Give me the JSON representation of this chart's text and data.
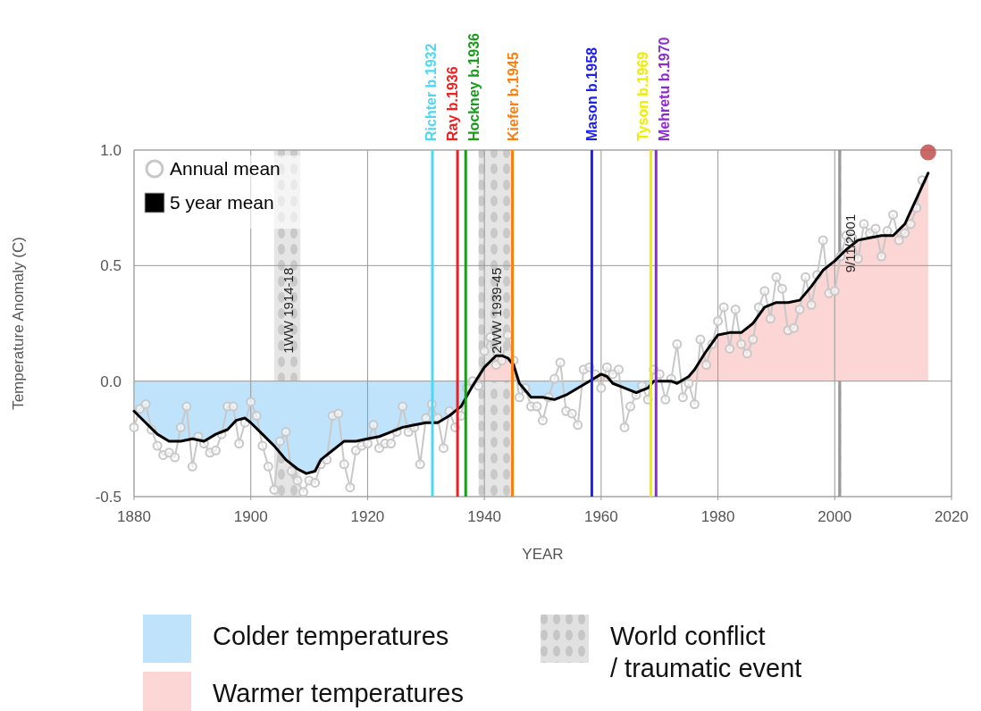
{
  "chart_data": {
    "type": "line",
    "xlabel": "YEAR",
    "ylabel": "Temperature Anomaly (C)",
    "xlim": [
      1880,
      2020
    ],
    "xticks": [
      1880,
      1900,
      1920,
      1940,
      1960,
      1980,
      2000,
      2020
    ],
    "ylim": [
      -0.5,
      1.0
    ],
    "yticks": [
      {
        "value": -0.5,
        "label": "-0.5"
      },
      {
        "value": 0,
        "label": "0.0"
      },
      {
        "value": 0.5,
        "label": "0.5"
      },
      {
        "value": 1.0,
        "label": "1.0"
      }
    ],
    "grid": true,
    "legend": "top left",
    "series": [
      {
        "type": "area",
        "color": "#bfe3fb",
        "x": [
          1880,
          1882,
          1884,
          1886,
          1888,
          1890,
          1892,
          1894,
          1896,
          1897.5,
          1899,
          1900,
          1902,
          1904,
          1906,
          1908,
          1909.5,
          1911,
          1912,
          1914,
          1916,
          1918,
          1920,
          1922,
          1924,
          1926,
          1928,
          1930,
          1932,
          1934,
          1936,
          1938,
          1938.3,
          1945.9,
          1946,
          1948,
          1950,
          1952,
          1954,
          1956,
          1958,
          1958.1,
          1961.8,
          1962,
          1964,
          1966,
          1968,
          1969,
          1972,
          1973,
          1974,
          1974.5
        ],
        "values": [
          -0.13,
          -0.18,
          -0.23,
          -0.26,
          -0.26,
          -0.25,
          -0.26,
          -0.23,
          -0.21,
          -0.17,
          -0.16,
          -0.18,
          -0.23,
          -0.28,
          -0.34,
          -0.38,
          -0.4,
          -0.39,
          -0.34,
          -0.3,
          -0.26,
          -0.26,
          -0.25,
          -0.24,
          -0.22,
          -0.2,
          -0.19,
          -0.18,
          -0.18,
          -0.15,
          -0.11,
          -0.02,
          0,
          0,
          -0.01,
          -0.07,
          -0.07,
          -0.08,
          -0.06,
          -0.03,
          0,
          0,
          0,
          -0.01,
          -0.03,
          -0.05,
          -0.03,
          0,
          0,
          -0.01,
          -0.01,
          0
        ]
      },
      {
        "type": "area",
        "color": "#fcd5d5",
        "x": [
          1938.3,
          1940,
          1942,
          1943,
          1944,
          1945,
          1945.9,
          1958.1,
          1960,
          1961,
          1961.8,
          1974.5,
          1975,
          1976,
          1978,
          1980,
          1982,
          1984,
          1986,
          1988,
          1990,
          1992,
          1994,
          1996,
          1998,
          2000,
          2002,
          2004,
          2006,
          2008,
          2010,
          2012,
          2014,
          2016
        ],
        "values": [
          0,
          0.06,
          0.11,
          0.11,
          0.1,
          0.07,
          0,
          0,
          0.03,
          0.02,
          0,
          0,
          0.02,
          0.05,
          0.13,
          0.2,
          0.21,
          0.21,
          0.25,
          0.32,
          0.34,
          0.34,
          0.35,
          0.41,
          0.48,
          0.52,
          0.57,
          0.61,
          0.62,
          0.63,
          0.63,
          0.68,
          0.79,
          0.9
        ]
      },
      {
        "name": "Annual mean",
        "color": "#c8c8c8",
        "marker": "circle",
        "x": [
          1880,
          1881,
          1882,
          1883,
          1884,
          1885,
          1886,
          1887,
          1888,
          1889,
          1890,
          1891,
          1892,
          1893,
          1894,
          1895,
          1896,
          1897,
          1898,
          1899,
          1900,
          1901,
          1902,
          1903,
          1904,
          1905,
          1906,
          1907,
          1908,
          1909,
          1910,
          1911,
          1912,
          1913,
          1914,
          1915,
          1916,
          1917,
          1918,
          1919,
          1920,
          1921,
          1922,
          1923,
          1924,
          1925,
          1926,
          1927,
          1928,
          1929,
          1930,
          1931,
          1932,
          1933,
          1934,
          1935,
          1936,
          1937,
          1938,
          1939,
          1940,
          1941,
          1942,
          1943,
          1944,
          1945,
          1946,
          1947,
          1948,
          1949,
          1950,
          1951,
          1952,
          1953,
          1954,
          1955,
          1956,
          1957,
          1958,
          1959,
          1960,
          1961,
          1962,
          1963,
          1964,
          1965,
          1966,
          1967,
          1968,
          1969,
          1970,
          1971,
          1972,
          1973,
          1974,
          1975,
          1976,
          1977,
          1978,
          1979,
          1980,
          1981,
          1982,
          1983,
          1984,
          1985,
          1986,
          1987,
          1988,
          1989,
          1990,
          1991,
          1992,
          1993,
          1994,
          1995,
          1996,
          1997,
          1998,
          1999,
          2000,
          2001,
          2002,
          2003,
          2004,
          2005,
          2006,
          2007,
          2008,
          2009,
          2010,
          2011,
          2012,
          2013,
          2014,
          2015
        ],
        "values": [
          -0.2,
          -0.12,
          -0.1,
          -0.21,
          -0.28,
          -0.32,
          -0.31,
          -0.33,
          -0.2,
          -0.11,
          -0.37,
          -0.24,
          -0.27,
          -0.31,
          -0.3,
          -0.23,
          -0.11,
          -0.11,
          -0.27,
          -0.18,
          -0.09,
          -0.15,
          -0.28,
          -0.37,
          -0.47,
          -0.26,
          -0.22,
          -0.39,
          -0.43,
          -0.48,
          -0.43,
          -0.44,
          -0.36,
          -0.34,
          -0.15,
          -0.14,
          -0.36,
          -0.46,
          -0.3,
          -0.28,
          -0.27,
          -0.19,
          -0.29,
          -0.27,
          -0.27,
          -0.22,
          -0.11,
          -0.22,
          -0.2,
          -0.36,
          -0.16,
          -0.1,
          -0.16,
          -0.29,
          -0.13,
          -0.2,
          -0.15,
          -0.03,
          0,
          -0.02,
          0.13,
          0.19,
          0.07,
          0.09,
          0.2,
          0.09,
          -0.07,
          -0.03,
          -0.11,
          -0.11,
          -0.17,
          -0.07,
          0.01,
          0.08,
          -0.13,
          -0.14,
          -0.19,
          0.05,
          0.06,
          0.03,
          -0.03,
          0.06,
          0.03,
          0.05,
          -0.2,
          -0.11,
          -0.06,
          -0.02,
          -0.08,
          0.05,
          0.03,
          -0.08,
          0.01,
          0.16,
          -0.07,
          -0.01,
          -0.1,
          0.18,
          0.07,
          0.16,
          0.26,
          0.32,
          0.14,
          0.31,
          0.16,
          0.12,
          0.18,
          0.32,
          0.39,
          0.27,
          0.45,
          0.4,
          0.22,
          0.23,
          0.31,
          0.45,
          0.33,
          0.46,
          0.61,
          0.38,
          0.39,
          0.54,
          0.63,
          0.62,
          0.53,
          0.68,
          0.64,
          0.66,
          0.54,
          0.65,
          0.72,
          0.61,
          0.64,
          0.68,
          0.75,
          0.87
        ]
      },
      {
        "type": "scatter",
        "color": "#c0504d",
        "x": [
          2016
        ],
        "values": [
          0.99
        ]
      },
      {
        "name": "5 year mean",
        "color": "#000000",
        "marker": "none",
        "x": [
          1880,
          1882,
          1884,
          1886,
          1888,
          1890,
          1892,
          1894,
          1896,
          1897.5,
          1899,
          1900,
          1902,
          1904,
          1906,
          1908,
          1909.5,
          1911,
          1912,
          1914,
          1916,
          1918,
          1920,
          1922,
          1924,
          1926,
          1928,
          1930,
          1932,
          1934,
          1936,
          1938,
          1940,
          1942,
          1943,
          1944,
          1945,
          1946,
          1948,
          1950,
          1952,
          1954,
          1956,
          1958,
          1960,
          1961,
          1962,
          1964,
          1966,
          1968,
          1969,
          1970,
          1972,
          1973,
          1975,
          1976,
          1978,
          1980,
          1982,
          1984,
          1986,
          1988,
          1990,
          1992,
          1994,
          1996,
          1998,
          2000,
          2002,
          2004,
          2006,
          2008,
          2010,
          2012,
          2014,
          2016
        ],
        "values": [
          -0.13,
          -0.18,
          -0.23,
          -0.26,
          -0.26,
          -0.25,
          -0.26,
          -0.23,
          -0.21,
          -0.17,
          -0.16,
          -0.18,
          -0.23,
          -0.28,
          -0.34,
          -0.38,
          -0.4,
          -0.39,
          -0.34,
          -0.3,
          -0.26,
          -0.26,
          -0.25,
          -0.24,
          -0.22,
          -0.2,
          -0.19,
          -0.18,
          -0.18,
          -0.15,
          -0.11,
          -0.02,
          0.06,
          0.11,
          0.11,
          0.1,
          0.07,
          -0.01,
          -0.07,
          -0.07,
          -0.08,
          -0.06,
          -0.03,
          0,
          0.03,
          0.02,
          -0.01,
          -0.03,
          -0.05,
          -0.03,
          0,
          0,
          0,
          -0.01,
          0.02,
          0.05,
          0.13,
          0.2,
          0.21,
          0.21,
          0.25,
          0.32,
          0.34,
          0.34,
          0.35,
          0.41,
          0.48,
          0.52,
          0.57,
          0.61,
          0.62,
          0.63,
          0.63,
          0.68,
          0.79,
          0.9
        ]
      }
    ],
    "bands": [
      {
        "axis": "x",
        "from": 1904,
        "to": 1908.5,
        "label": "1WW 1914-18",
        "color": "#d4d4d4"
      },
      {
        "axis": "x",
        "from": 1939,
        "to": 1944.8,
        "label": "2WW 1939-45",
        "color": "#d4d4d4"
      },
      {
        "axis": "x",
        "from": 2000.6,
        "to": 2001.1,
        "label": "9/11/2001",
        "color": "#555555"
      }
    ],
    "ref_lines": [
      {
        "axis": "x",
        "value": 1931.1,
        "label": "Richter b.1932",
        "color": "#4dd9f5"
      },
      {
        "axis": "x",
        "value": 1935.4,
        "label": "Ray b.1936",
        "color": "#f02020"
      },
      {
        "axis": "x",
        "value": 1936.8,
        "label": "Hockney b.1936",
        "color": "#1a9e1a"
      },
      {
        "axis": "x",
        "value": 1944.8,
        "label": "Kiefer b.1945",
        "color": "#ff7f0e"
      },
      {
        "axis": "x",
        "value": 1958.4,
        "label": "Mason b.1958",
        "color": "#2020ee"
      },
      {
        "axis": "x",
        "value": 1968.5,
        "label": "Tyson b.1969",
        "color": "#eeee00"
      },
      {
        "axis": "x",
        "value": 1969.4,
        "label": "Mehretu b.1970",
        "color": "#8e2bd0"
      }
    ],
    "annotations": [
      "Colder temperatures",
      "Warmer temperatures",
      "World conflict / traumatic event"
    ]
  }
}
